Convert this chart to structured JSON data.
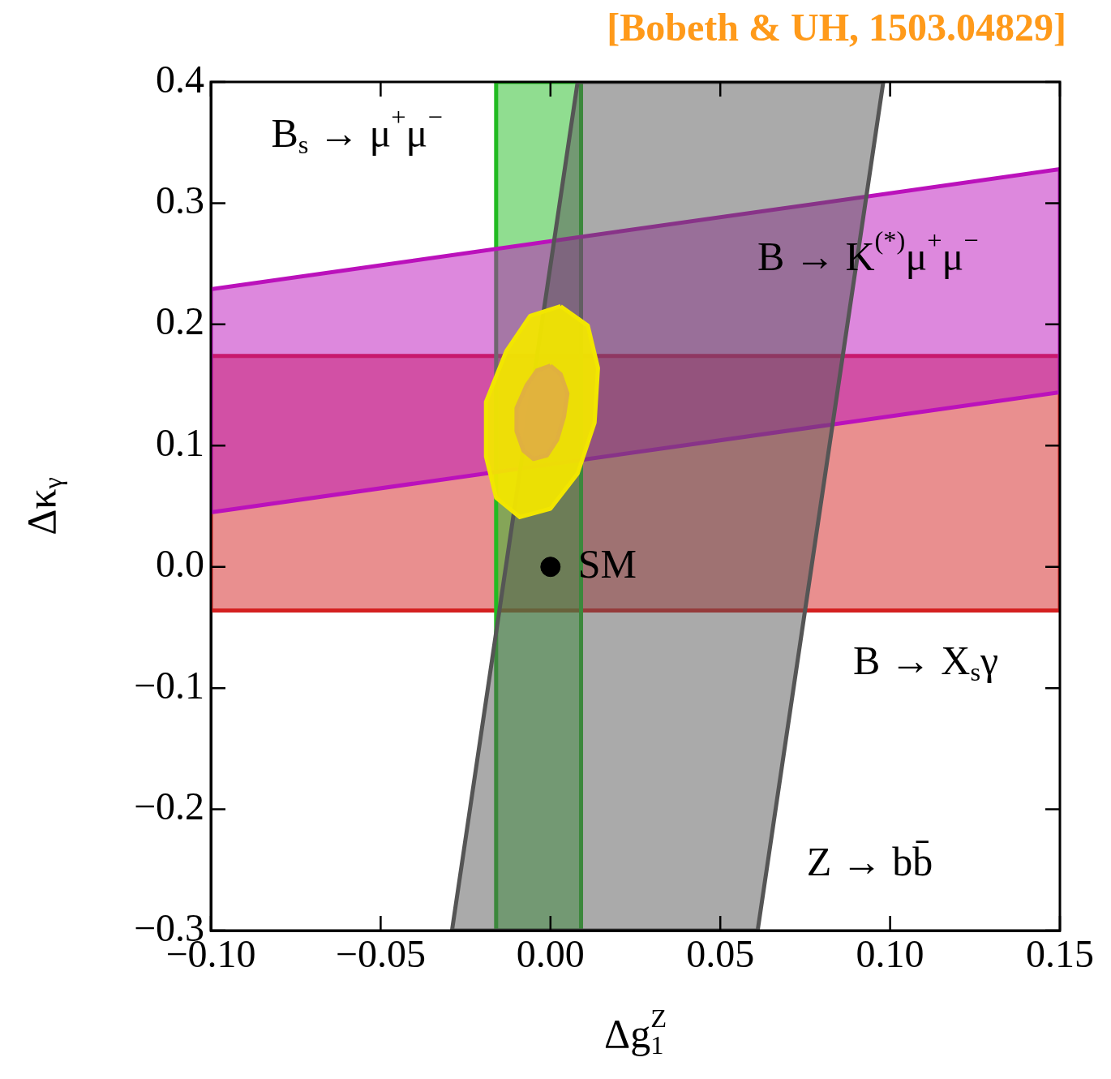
{
  "chart_data": {
    "type": "area",
    "title": "[Bobeth & UH, 1503.04829]",
    "xlabel": "Δg$_{1}$$^{Z}$",
    "ylabel": "Δκ$_{γ}$",
    "xlim": [
      -0.1,
      0.15
    ],
    "xticks": [
      {
        "value": -0.1,
        "label": "−0.10"
      },
      {
        "value": -0.05,
        "label": "−0.05"
      },
      {
        "value": 0,
        "label": "0.00"
      },
      {
        "value": 0.05,
        "label": "0.05"
      },
      {
        "value": 0.1,
        "label": "0.10"
      },
      {
        "value": 0.15,
        "label": "0.15"
      }
    ],
    "ylim": [
      -0.3,
      0.4
    ],
    "yticks": [
      {
        "value": -0.3,
        "label": "−0.3"
      },
      {
        "value": -0.2,
        "label": "−0.2"
      },
      {
        "value": -0.1,
        "label": "−0.1"
      },
      {
        "value": 0,
        "label": "0.0"
      },
      0.1,
      0.2,
      0.3,
      0.4
    ],
    "grid": false,
    "legend": false,
    "series": [
      {
        "color": "#d42020",
        "x": [
          -0.1,
          0.15,
          0.15,
          -0.1
        ],
        "values": [
          -0.036,
          -0.036,
          0.174,
          0.174
        ]
      },
      {
        "color": "#22bb22",
        "x": [
          -0.016,
          0.009,
          0.009,
          -0.016
        ],
        "values": [
          -0.3,
          -0.3,
          0.4,
          0.4
        ]
      },
      {
        "color": "#bb11bb",
        "x": [
          -0.1,
          0.15,
          0.15,
          -0.1
        ],
        "values": [
          0.045,
          0.144,
          0.328,
          0.229
        ]
      },
      {
        "color": "#555555",
        "x": [
          -0.029,
          0.008,
          0.098,
          0.061
        ],
        "values": [
          -0.3,
          0.4,
          0.4,
          -0.3
        ]
      },
      {
        "color": "#f2e600",
        "x": [
          0.003,
          0.011,
          0.014,
          0.013,
          0.008,
          0.0,
          -0.009,
          -0.016,
          -0.019,
          -0.019,
          -0.013,
          -0.006
        ],
        "values": [
          0.215,
          0.199,
          0.164,
          0.119,
          0.077,
          0.048,
          0.041,
          0.057,
          0.091,
          0.136,
          0.178,
          0.207
        ]
      },
      {
        "color": "#e0b040",
        "x": [
          0.0,
          0.003,
          0.005,
          0.004,
          0.002,
          -0.001,
          -0.005,
          -0.008,
          -0.01,
          -0.01,
          -0.007,
          -0.004
        ],
        "values": [
          0.166,
          0.159,
          0.143,
          0.124,
          0.105,
          0.092,
          0.089,
          0.096,
          0.112,
          0.131,
          0.15,
          0.162
        ]
      },
      {
        "type": "scatter",
        "name": "SM",
        "color": "#000000",
        "marker": "circle",
        "x": [
          0
        ],
        "values": [
          0
        ]
      }
    ],
    "annotations": [
      "B$_{s}$ → μ$^{+}$μ$^{−}$",
      "B → K$^{(*)}$μ$^{+}$μ$^{−}$",
      "B → X$_{s}$γ",
      "Z → bb̄"
    ]
  }
}
